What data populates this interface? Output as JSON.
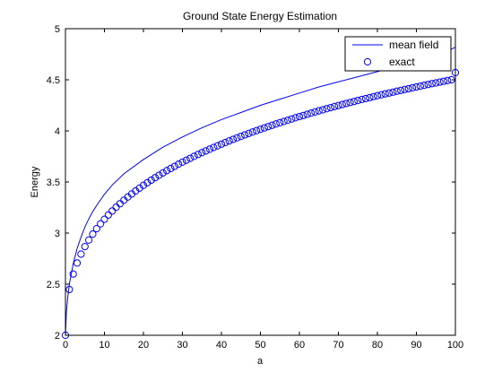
{
  "chart_data": {
    "type": "line",
    "title": "Ground State Energy Estimation",
    "xlabel": "a",
    "ylabel": "Energy",
    "xlim": [
      0,
      100
    ],
    "ylim": [
      2,
      5
    ],
    "xticks": [
      0,
      10,
      20,
      30,
      40,
      50,
      60,
      70,
      80,
      90,
      100
    ],
    "xtick_labels": [
      "0",
      "10",
      "20",
      "30",
      "40",
      "50",
      "60",
      "70",
      "80",
      "90",
      "100"
    ],
    "yticks": [
      2,
      2.5,
      3,
      3.5,
      4,
      4.5,
      5
    ],
    "ytick_labels": [
      "2",
      "2.5",
      "3",
      "3.5",
      "4",
      "4.5",
      "5"
    ],
    "grid": false,
    "legend_position": "top-right",
    "series": [
      {
        "name": "mean field",
        "style": "line",
        "color": "#0000ff",
        "x": [
          0,
          0.25,
          0.5,
          1,
          2,
          3,
          4,
          5,
          6,
          7,
          8,
          10,
          12,
          15,
          20,
          25,
          30,
          35,
          40,
          45,
          50,
          55,
          60,
          65,
          70,
          75,
          80,
          85,
          90,
          95,
          100
        ],
        "y": [
          2.0,
          2.23,
          2.34,
          2.5,
          2.7,
          2.85,
          2.96,
          3.06,
          3.14,
          3.21,
          3.27,
          3.38,
          3.47,
          3.58,
          3.72,
          3.84,
          3.94,
          4.03,
          4.11,
          4.18,
          4.25,
          4.31,
          4.37,
          4.43,
          4.48,
          4.53,
          4.58,
          4.63,
          4.67,
          4.72,
          4.82
        ]
      },
      {
        "name": "exact",
        "style": "markers",
        "marker": "circle",
        "color": "#0000ff",
        "x": [
          0,
          1,
          2,
          3,
          4,
          5,
          6,
          7,
          8,
          9,
          10,
          11,
          12,
          13,
          14,
          15,
          16,
          17,
          18,
          19,
          20,
          21,
          22,
          23,
          24,
          25,
          26,
          27,
          28,
          29,
          30,
          31,
          32,
          33,
          34,
          35,
          36,
          37,
          38,
          39,
          40,
          41,
          42,
          43,
          44,
          45,
          46,
          47,
          48,
          49,
          50,
          51,
          52,
          53,
          54,
          55,
          56,
          57,
          58,
          59,
          60,
          61,
          62,
          63,
          64,
          65,
          66,
          67,
          68,
          69,
          70,
          71,
          72,
          73,
          74,
          75,
          76,
          77,
          78,
          79,
          80,
          81,
          82,
          83,
          84,
          85,
          86,
          87,
          88,
          89,
          90,
          91,
          92,
          93,
          94,
          95,
          96,
          97,
          98,
          99,
          100
        ],
        "y": [
          2.0,
          2.448,
          2.599,
          2.707,
          2.794,
          2.868,
          2.932,
          2.99,
          3.043,
          3.091,
          3.135,
          3.177,
          3.216,
          3.253,
          3.288,
          3.321,
          3.353,
          3.383,
          3.412,
          3.44,
          3.467,
          3.493,
          3.518,
          3.542,
          3.566,
          3.589,
          3.611,
          3.632,
          3.653,
          3.674,
          3.694,
          3.713,
          3.732,
          3.751,
          3.769,
          3.787,
          3.804,
          3.821,
          3.838,
          3.854,
          3.87,
          3.886,
          3.902,
          3.917,
          3.932,
          3.946,
          3.961,
          3.975,
          3.989,
          4.002,
          4.016,
          4.029,
          4.042,
          4.055,
          4.068,
          4.08,
          4.092,
          4.104,
          4.116,
          4.128,
          4.14,
          4.151,
          4.163,
          4.174,
          4.185,
          4.196,
          4.206,
          4.217,
          4.227,
          4.238,
          4.248,
          4.258,
          4.268,
          4.278,
          4.288,
          4.297,
          4.307,
          4.316,
          4.325,
          4.335,
          4.344,
          4.353,
          4.362,
          4.37,
          4.379,
          4.388,
          4.396,
          4.405,
          4.413,
          4.421,
          4.43,
          4.438,
          4.446,
          4.454,
          4.462,
          4.469,
          4.477,
          4.485,
          4.492,
          4.5,
          4.57
        ]
      }
    ]
  }
}
